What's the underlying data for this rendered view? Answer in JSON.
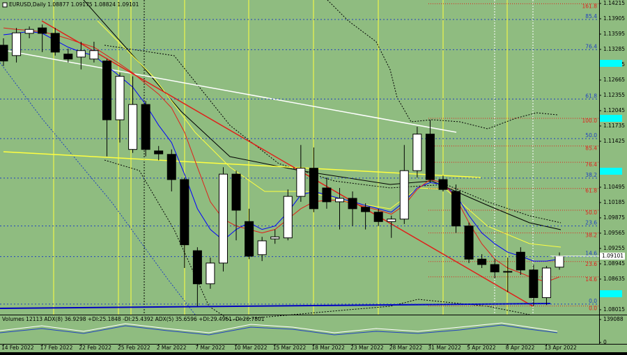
{
  "chart_data": {
    "type": "candlestick",
    "title": "EURUSD,Daily  1.08877 1.09175 1.08824 1.09101",
    "categories": [
      "14 Feb 2022",
      null,
      null,
      "17 Feb 2022",
      null,
      null,
      "22 Feb 2022",
      null,
      null,
      "25 Feb 2022",
      null,
      null,
      "2 Mar 2022",
      null,
      null,
      "7 Mar 2022",
      null,
      null,
      "10 Mar 2022",
      null,
      null,
      "15 Mar 2022",
      null,
      null,
      "18 Mar 2022",
      null,
      null,
      "23 Mar 2022",
      null,
      null,
      "28 Mar 2022",
      null,
      null,
      "31 Mar 2022",
      null,
      null,
      "5 Apr 2022",
      null,
      null,
      "8 Apr 2022",
      null,
      null,
      "13 Apr 2022",
      null
    ],
    "open": [
      1.1337,
      1.1316,
      1.1361,
      1.1372,
      1.1361,
      1.1319,
      1.1313,
      1.1309,
      1.1305,
      1.1186,
      1.1126,
      1.1217,
      1.1123,
      1.1116,
      1.1065,
      1.0921,
      1.0854,
      1.0896,
      1.1076,
      1.098,
      1.0913,
      1.0945,
      1.0947,
      1.1031,
      1.1088,
      1.1048,
      1.102,
      1.1027,
      1.1009,
      1.0999,
      1.098,
      1.0985,
      1.1083,
      1.1157,
      1.1065,
      1.1041,
      1.0971,
      1.0904,
      1.0893,
      1.0878,
      1.0918,
      1.0882,
      1.0826,
      1.08877
    ],
    "high": [
      1.1351,
      1.1372,
      1.1375,
      1.1379,
      1.1372,
      1.133,
      1.1344,
      1.1344,
      1.1309,
      1.1281,
      1.1274,
      1.1224,
      1.1133,
      1.1126,
      1.1069,
      1.0928,
      1.0907,
      1.109,
      1.1083,
      1.1006,
      1.0949,
      1.0964,
      1.1045,
      1.1135,
      1.113,
      1.1069,
      1.1048,
      1.1041,
      1.1017,
      1.1006,
      1.0992,
      1.1135,
      1.1172,
      1.1186,
      1.1073,
      1.1055,
      1.0978,
      1.0914,
      1.0904,
      1.0907,
      1.0928,
      1.0893,
      1.089,
      1.09175
    ],
    "low": [
      1.1295,
      1.1302,
      1.1351,
      1.1323,
      1.1316,
      1.1302,
      1.1288,
      1.1302,
      1.1112,
      1.114,
      1.1119,
      1.1112,
      1.1104,
      1.1041,
      1.0886,
      1.0809,
      1.0844,
      1.0879,
      1.0942,
      1.0904,
      1.09,
      1.0935,
      1.0942,
      1.102,
      1.0999,
      1.1006,
      1.0964,
      1.0971,
      1.0964,
      1.0971,
      1.0947,
      1.0975,
      1.1069,
      1.1059,
      1.1041,
      1.0957,
      1.0896,
      1.0886,
      1.0865,
      1.0837,
      1.0872,
      1.0809,
      1.0811,
      1.08824
    ],
    "close": [
      1.1305,
      1.1362,
      1.1369,
      1.1361,
      1.1323,
      1.1309,
      1.1326,
      1.1326,
      1.1186,
      1.1274,
      1.1217,
      1.1126,
      1.1117,
      1.1065,
      1.0933,
      1.0854,
      1.0896,
      1.1076,
      1.1003,
      1.091,
      1.0941,
      1.0949,
      1.1031,
      1.1088,
      1.1006,
      1.102,
      1.1027,
      1.1006,
      1.1,
      1.098,
      1.0985,
      1.1083,
      1.1157,
      1.1065,
      1.1045,
      1.0971,
      1.0904,
      1.0893,
      1.0878,
      1.0879,
      1.0882,
      1.0826,
      1.0886,
      1.09101
    ],
    "up_color": "#ffffff",
    "down_color": "#000000",
    "series": [
      {
        "color": "#0000ff",
        "values": [
          1.1358,
          1.1361,
          1.1365,
          1.1361,
          1.1347,
          1.1333,
          1.1323,
          1.1316,
          1.1295,
          1.1274,
          1.1252,
          1.1217,
          1.1175,
          1.114,
          1.1076,
          1.1006,
          1.0964,
          1.0942,
          1.0964,
          1.0978,
          1.0964,
          1.0971,
          1.0999,
          1.1034,
          1.1041,
          1.1034,
          1.1027,
          1.102,
          1.1013,
          1.1006,
          1.0999,
          1.102,
          1.1048,
          1.1059,
          1.1055,
          1.1034,
          1.0992,
          1.0957,
          1.0935,
          1.0918,
          1.091,
          1.09,
          1.09,
          1.0904
        ]
      },
      {
        "color": "#e0201a",
        "values": [
          1.1372,
          1.1369,
          1.1367,
          1.1364,
          1.1358,
          1.135,
          1.1341,
          1.1333,
          1.1316,
          1.1299,
          1.1281,
          1.1259,
          1.1238,
          1.121,
          1.1161,
          1.109,
          1.102,
          1.0985,
          1.0971,
          1.0964,
          1.0957,
          1.0964,
          1.0985,
          1.1006,
          1.102,
          1.1023,
          1.1023,
          1.1017,
          1.101,
          1.1003,
          1.0995,
          1.1013,
          1.1045,
          1.1065,
          1.1059,
          1.1027,
          1.0978,
          1.0935,
          1.0904,
          1.0886,
          1.0876,
          1.0865,
          1.0858,
          1.0868
        ]
      }
    ],
    "fib_blue": [
      {
        "label": "85.4",
        "value": 1.1389
      },
      {
        "label": "76.4",
        "value": 1.1328
      },
      {
        "label": "61.8",
        "value": 1.1228
      },
      {
        "label": "50.0",
        "value": 1.1148
      },
      {
        "label": "38.2",
        "value": 1.1068
      },
      {
        "label": "23.6",
        "value": 1.0971
      },
      {
        "label": "14.6",
        "value": 1.0909
      },
      {
        "label": "0.0",
        "value": 1.0813
      }
    ],
    "fib_red": [
      {
        "label": "161.8",
        "value": 1.1421
      },
      {
        "label": "100.0",
        "value": 1.1189
      },
      {
        "label": "85.4",
        "value": 1.1133
      },
      {
        "label": "76.4",
        "value": 1.11
      },
      {
        "label": "61.8",
        "value": 1.1047
      },
      {
        "label": "50.0",
        "value": 1.1003
      },
      {
        "label": "38.2",
        "value": 1.0957
      },
      {
        "label": "23.6",
        "value": 1.0899
      },
      {
        "label": "14.6",
        "value": 1.0868
      },
      {
        "label": "0.0",
        "value": 1.0809
      }
    ],
    "ylim": [
      1.07916,
      1.14285
    ],
    "yticks": [
      1.14215,
      1.13905,
      1.13595,
      1.13285,
      1.12975,
      1.12665,
      1.12355,
      1.12045,
      1.11735,
      1.11425,
      1.10495,
      1.10185,
      1.09875,
      1.09565,
      1.09255,
      1.08945,
      1.08635,
      1.08015
    ],
    "indicator_text": "Volumes 12113  ADX(8) 36.9298 +DI:25.1848 -DI:25.4392  ADX(5) 35.6596 +DI:29.4961 -DI:20.7801",
    "indicator_ylim": [
      0,
      139088
    ],
    "indicator_yticks": [
      139088,
      0
    ]
  }
}
